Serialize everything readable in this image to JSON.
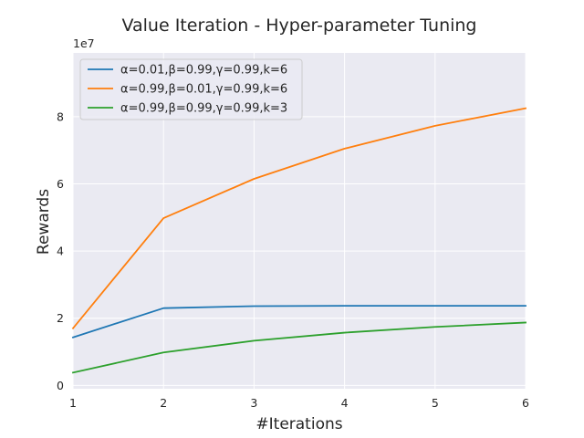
{
  "chart_data": {
    "type": "line",
    "title": "Value Iteration - Hyper-parameter Tuning",
    "xlabel": "#Iterations",
    "ylabel": "Rewards",
    "y_scale_label": "1e7",
    "x": [
      1,
      2,
      3,
      4,
      5,
      6
    ],
    "xlim": [
      1,
      6
    ],
    "ylim": [
      -0.1,
      9.9
    ],
    "xticks": [
      "1",
      "2",
      "3",
      "4",
      "5",
      "6"
    ],
    "yticks": [
      "0",
      "2",
      "4",
      "6",
      "8"
    ],
    "ytick_values": [
      0,
      2,
      4,
      6,
      8
    ],
    "grid": true,
    "legend_position": "top-left",
    "series": [
      {
        "name": "α=0.01,β=0.99,γ=0.99,k=6",
        "color": "#1f77b4",
        "values": [
          1.43,
          2.3,
          2.36,
          2.37,
          2.37,
          2.37
        ]
      },
      {
        "name": "α=0.99,β=0.01,γ=0.99,k=6",
        "color": "#ff7f0e",
        "values": [
          1.7,
          4.98,
          6.15,
          7.05,
          7.73,
          8.25
        ]
      },
      {
        "name": "α=0.99,β=0.99,γ=0.99,k=3",
        "color": "#2ca02c",
        "values": [
          0.38,
          0.98,
          1.33,
          1.57,
          1.74,
          1.87
        ]
      }
    ]
  }
}
